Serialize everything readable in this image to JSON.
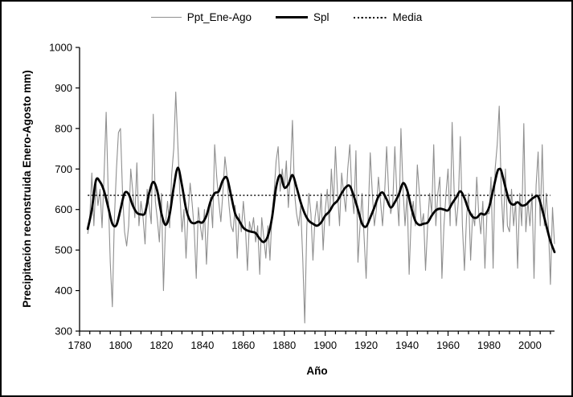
{
  "figure": {
    "background": "#ffffff",
    "border_color": "#000000"
  },
  "chart_data": {
    "type": "line",
    "title": "",
    "xlabel": "Año",
    "ylabel": "Precipitación reconstruida Enero-Agosto mm)",
    "x_range": [
      1780,
      2012
    ],
    "ylim": [
      300,
      1000
    ],
    "x_major_ticks": [
      1780,
      1800,
      1820,
      1840,
      1860,
      1880,
      1900,
      1920,
      1940,
      1960,
      1980,
      2000
    ],
    "x_minor_step": 5,
    "y_ticks": [
      300,
      400,
      500,
      600,
      700,
      800,
      900,
      1000
    ],
    "grid": false,
    "legend_position": "top-center",
    "legend": {
      "items": [
        {
          "id": "ppt",
          "label": "Ppt_Ene-Ago"
        },
        {
          "id": "spl",
          "label": "Spl"
        },
        {
          "id": "media",
          "label": "Media"
        }
      ]
    },
    "series": [
      {
        "name": "Ppt_Ene-Ago",
        "role": "annual",
        "color": "#8f8f8f",
        "line_width": 1.1,
        "x_start": 1784,
        "x_step": 1,
        "values": [
          540,
          580,
          690,
          560,
          665,
          610,
          650,
          555,
          690,
          840,
          640,
          470,
          360,
          575,
          700,
          790,
          800,
          640,
          545,
          510,
          560,
          700,
          645,
          580,
          715,
          560,
          620,
          580,
          515,
          650,
          610,
          565,
          835,
          620,
          575,
          520,
          640,
          400,
          565,
          620,
          555,
          685,
          750,
          890,
          760,
          640,
          545,
          600,
          480,
          590,
          665,
          615,
          550,
          430,
          605,
          560,
          525,
          600,
          465,
          580,
          630,
          555,
          760,
          680,
          620,
          570,
          640,
          730,
          685,
          610,
          560,
          545,
          610,
          480,
          590,
          545,
          620,
          560,
          450,
          570,
          545,
          580,
          520,
          560,
          440,
          580,
          530,
          480,
          560,
          475,
          590,
          640,
          720,
          755,
          645,
          700,
          650,
          720,
          605,
          690,
          820,
          640,
          590,
          560,
          610,
          480,
          320,
          560,
          640,
          590,
          475,
          580,
          620,
          560,
          640,
          500,
          600,
          650,
          560,
          700,
          610,
          755,
          640,
          560,
          690,
          640,
          595,
          700,
          760,
          640,
          590,
          745,
          470,
          560,
          640,
          530,
          430,
          590,
          740,
          640,
          560,
          600,
          680,
          620,
          560,
          640,
          755,
          640,
          590,
          620,
          755,
          640,
          560,
          800,
          650,
          560,
          640,
          440,
          580,
          620,
          560,
          710,
          640,
          560,
          590,
          450,
          560,
          640,
          590,
          760,
          560,
          640,
          680,
          430,
          560,
          640,
          700,
          560,
          815,
          640,
          560,
          620,
          780,
          560,
          450,
          580,
          640,
          475,
          590,
          560,
          680,
          590,
          540,
          620,
          455,
          590,
          590,
          680,
          455,
          700,
          760,
          855,
          640,
          545,
          700,
          560,
          545,
          650,
          560,
          620,
          455,
          640,
          560,
          812,
          545,
          620,
          560,
          640,
          430,
          660,
          742,
          560,
          760,
          560,
          640,
          560,
          415,
          605,
          515
        ]
      },
      {
        "name": "Spl",
        "role": "smoothed",
        "color": "#000000",
        "line_width": 2.8,
        "points": [
          [
            1784,
            552
          ],
          [
            1786,
            600
          ],
          [
            1788,
            672
          ],
          [
            1790,
            668
          ],
          [
            1792,
            645
          ],
          [
            1794,
            605
          ],
          [
            1796,
            565
          ],
          [
            1798,
            562
          ],
          [
            1800,
            600
          ],
          [
            1802,
            640
          ],
          [
            1804,
            638
          ],
          [
            1806,
            610
          ],
          [
            1808,
            592
          ],
          [
            1810,
            588
          ],
          [
            1812,
            592
          ],
          [
            1814,
            640
          ],
          [
            1816,
            668
          ],
          [
            1818,
            645
          ],
          [
            1820,
            590
          ],
          [
            1822,
            562
          ],
          [
            1824,
            588
          ],
          [
            1826,
            655
          ],
          [
            1828,
            703
          ],
          [
            1830,
            660
          ],
          [
            1832,
            602
          ],
          [
            1834,
            572
          ],
          [
            1836,
            566
          ],
          [
            1838,
            570
          ],
          [
            1840,
            568
          ],
          [
            1842,
            585
          ],
          [
            1844,
            620
          ],
          [
            1846,
            640
          ],
          [
            1848,
            645
          ],
          [
            1850,
            672
          ],
          [
            1852,
            678
          ],
          [
            1854,
            635
          ],
          [
            1856,
            590
          ],
          [
            1858,
            572
          ],
          [
            1860,
            555
          ],
          [
            1862,
            548
          ],
          [
            1864,
            545
          ],
          [
            1866,
            542
          ],
          [
            1868,
            528
          ],
          [
            1870,
            520
          ],
          [
            1872,
            535
          ],
          [
            1874,
            580
          ],
          [
            1876,
            655
          ],
          [
            1878,
            685
          ],
          [
            1880,
            655
          ],
          [
            1882,
            662
          ],
          [
            1884,
            685
          ],
          [
            1886,
            655
          ],
          [
            1888,
            618
          ],
          [
            1890,
            590
          ],
          [
            1892,
            572
          ],
          [
            1894,
            565
          ],
          [
            1896,
            560
          ],
          [
            1898,
            568
          ],
          [
            1900,
            585
          ],
          [
            1902,
            595
          ],
          [
            1904,
            612
          ],
          [
            1906,
            622
          ],
          [
            1908,
            640
          ],
          [
            1910,
            655
          ],
          [
            1912,
            658
          ],
          [
            1914,
            632
          ],
          [
            1916,
            600
          ],
          [
            1918,
            565
          ],
          [
            1920,
            558
          ],
          [
            1922,
            580
          ],
          [
            1924,
            605
          ],
          [
            1926,
            632
          ],
          [
            1928,
            642
          ],
          [
            1930,
            625
          ],
          [
            1932,
            605
          ],
          [
            1934,
            618
          ],
          [
            1936,
            638
          ],
          [
            1938,
            665
          ],
          [
            1940,
            648
          ],
          [
            1942,
            605
          ],
          [
            1944,
            572
          ],
          [
            1946,
            562
          ],
          [
            1948,
            565
          ],
          [
            1950,
            568
          ],
          [
            1952,
            585
          ],
          [
            1954,
            598
          ],
          [
            1956,
            602
          ],
          [
            1958,
            600
          ],
          [
            1960,
            598
          ],
          [
            1962,
            615
          ],
          [
            1964,
            630
          ],
          [
            1966,
            645
          ],
          [
            1968,
            628
          ],
          [
            1970,
            600
          ],
          [
            1972,
            582
          ],
          [
            1974,
            580
          ],
          [
            1976,
            590
          ],
          [
            1978,
            588
          ],
          [
            1980,
            605
          ],
          [
            1982,
            648
          ],
          [
            1984,
            692
          ],
          [
            1985,
            700
          ],
          [
            1986,
            695
          ],
          [
            1988,
            655
          ],
          [
            1990,
            620
          ],
          [
            1992,
            612
          ],
          [
            1994,
            618
          ],
          [
            1996,
            610
          ],
          [
            1998,
            612
          ],
          [
            2000,
            622
          ],
          [
            2002,
            630
          ],
          [
            2004,
            632
          ],
          [
            2006,
            600
          ],
          [
            2008,
            560
          ],
          [
            2010,
            522
          ],
          [
            2012,
            495
          ]
        ]
      },
      {
        "name": "Media",
        "role": "mean",
        "color": "#000000",
        "style": "dotted",
        "line_width": 1.4,
        "value": 635,
        "x_span": [
          1784,
          2010
        ]
      }
    ]
  }
}
